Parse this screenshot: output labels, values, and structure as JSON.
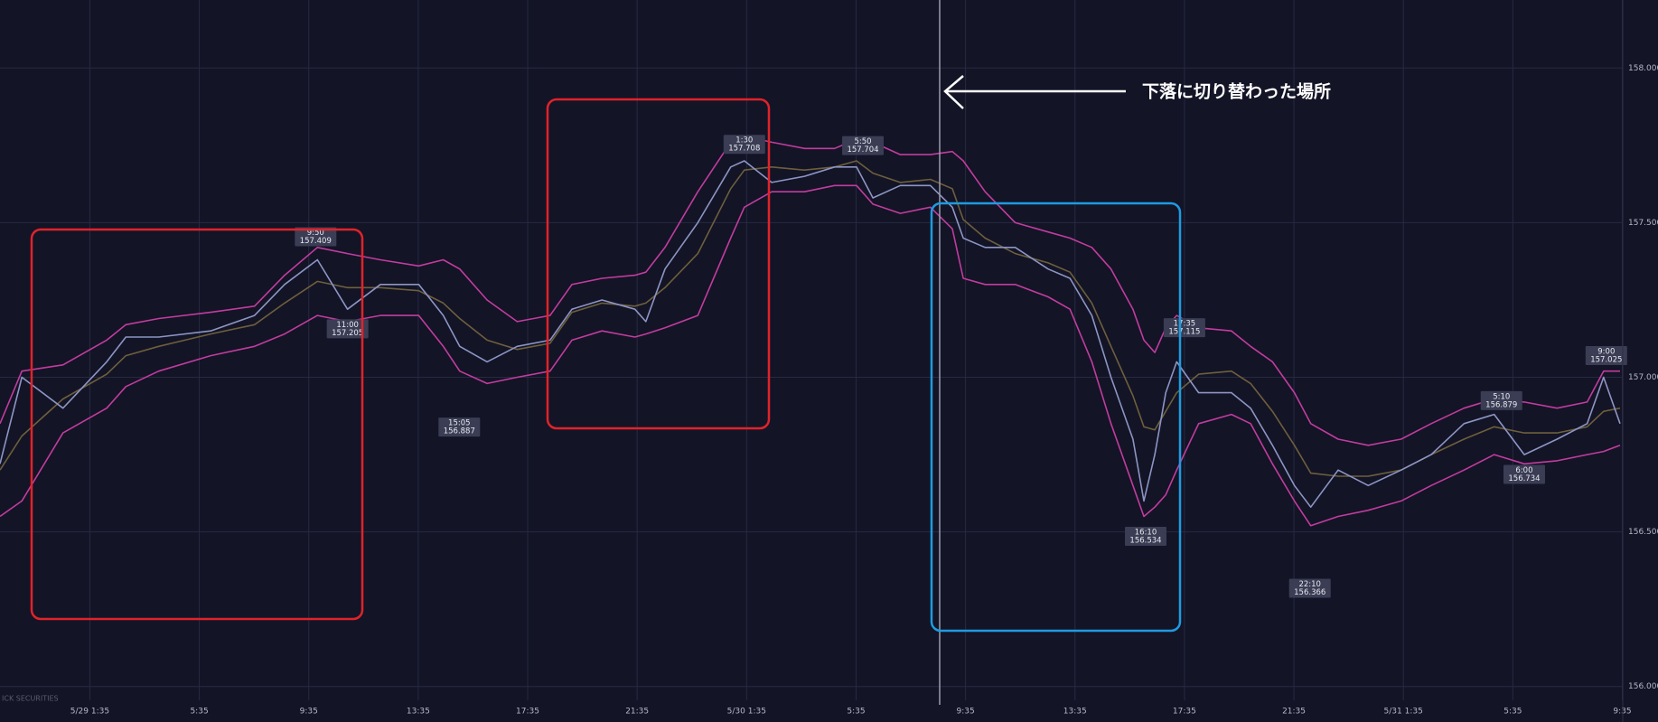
{
  "chart_data": {
    "type": "line",
    "x": [
      -1.7,
      -0.9,
      0.6,
      2.2,
      2.9,
      4.1,
      6.0,
      7.6,
      8.7,
      9.9,
      11.0,
      12.2,
      13.6,
      14.5,
      15.1,
      16.1,
      17.2,
      18.4,
      19.2,
      20.3,
      21.5,
      21.9,
      22.6,
      23.8,
      25.0,
      25.5,
      26.5,
      27.7,
      28.8,
      29.6,
      30.2,
      31.2,
      32.3,
      33.1,
      33.5,
      34.3,
      35.4,
      36.6,
      37.4,
      38.2,
      38.9,
      39.7,
      40.1,
      40.5,
      40.9,
      41.3,
      42.1,
      43.3,
      44.0,
      44.8,
      45.6,
      46.2,
      47.2,
      48.3,
      49.5,
      50.6,
      51.8,
      52.9,
      54.0,
      55.2,
      56.3,
      56.9,
      57.5
    ],
    "series": [
      {
        "color": "#c23c9e",
        "values": [
          156.85,
          157.02,
          157.04,
          157.12,
          157.17,
          157.19,
          157.21,
          157.23,
          157.33,
          157.42,
          157.4,
          157.38,
          157.36,
          157.38,
          157.35,
          157.25,
          157.18,
          157.2,
          157.3,
          157.32,
          157.33,
          157.34,
          157.42,
          157.6,
          157.76,
          157.78,
          157.76,
          157.74,
          157.74,
          157.77,
          157.76,
          157.72,
          157.72,
          157.73,
          157.7,
          157.6,
          157.5,
          157.47,
          157.45,
          157.42,
          157.35,
          157.22,
          157.12,
          157.08,
          157.16,
          157.2,
          157.16,
          157.15,
          157.1,
          157.05,
          156.95,
          156.85,
          156.8,
          156.78,
          156.8,
          156.85,
          156.9,
          156.93,
          156.92,
          156.9,
          156.92,
          157.02,
          157.02
        ]
      },
      {
        "color": "#c23c9e",
        "values": [
          156.55,
          156.6,
          156.82,
          156.9,
          156.97,
          157.02,
          157.07,
          157.1,
          157.14,
          157.2,
          157.18,
          157.2,
          157.2,
          157.1,
          157.02,
          156.98,
          157.0,
          157.02,
          157.12,
          157.15,
          157.13,
          157.14,
          157.16,
          157.2,
          157.45,
          157.55,
          157.6,
          157.6,
          157.62,
          157.62,
          157.56,
          157.53,
          157.55,
          157.48,
          157.32,
          157.3,
          157.3,
          157.26,
          157.22,
          157.05,
          156.85,
          156.65,
          156.55,
          156.58,
          156.62,
          156.7,
          156.85,
          156.88,
          156.85,
          156.72,
          156.6,
          156.52,
          156.55,
          156.57,
          156.6,
          156.65,
          156.7,
          156.75,
          156.72,
          156.73,
          156.75,
          156.76,
          156.78
        ]
      },
      {
        "color": "#6e5f3c",
        "values": [
          156.7,
          156.81,
          156.93,
          157.01,
          157.07,
          157.1,
          157.14,
          157.17,
          157.24,
          157.31,
          157.29,
          157.29,
          157.28,
          157.24,
          157.19,
          157.12,
          157.09,
          157.11,
          157.21,
          157.24,
          157.23,
          157.24,
          157.29,
          157.4,
          157.61,
          157.67,
          157.68,
          157.67,
          157.68,
          157.7,
          157.66,
          157.63,
          157.64,
          157.61,
          157.51,
          157.45,
          157.4,
          157.37,
          157.34,
          157.24,
          157.1,
          156.94,
          156.84,
          156.83,
          156.89,
          156.95,
          157.01,
          157.02,
          156.98,
          156.89,
          156.78,
          156.69,
          156.68,
          156.68,
          156.7,
          156.75,
          156.8,
          156.84,
          156.82,
          156.82,
          156.84,
          156.89,
          156.9
        ]
      },
      {
        "color": "#8d95c4",
        "values": [
          156.72,
          157.0,
          156.9,
          157.05,
          157.13,
          157.13,
          157.15,
          157.2,
          157.3,
          157.38,
          157.22,
          157.3,
          157.3,
          157.2,
          157.1,
          157.05,
          157.1,
          157.12,
          157.22,
          157.25,
          157.22,
          157.18,
          157.35,
          157.5,
          157.68,
          157.7,
          157.63,
          157.65,
          157.68,
          157.68,
          157.58,
          157.62,
          157.62,
          157.55,
          157.45,
          157.42,
          157.42,
          157.35,
          157.32,
          157.2,
          157.0,
          156.8,
          156.6,
          156.75,
          156.95,
          157.05,
          156.95,
          156.95,
          156.9,
          156.78,
          156.65,
          156.58,
          156.7,
          156.65,
          156.7,
          156.75,
          156.85,
          156.88,
          156.75,
          156.8,
          156.85,
          157.0,
          156.85
        ]
      }
    ],
    "annotations": [
      {
        "x": 9.833,
        "label": "9:50",
        "value": 157.409
      },
      {
        "x": 11.0,
        "label": "11:00",
        "value": 157.205
      },
      {
        "x": 15.083,
        "label": "15:05",
        "value": 156.887
      },
      {
        "x": 25.5,
        "label": "1:30",
        "value": 157.708
      },
      {
        "x": 29.833,
        "label": "5:50",
        "value": 157.704
      },
      {
        "x": 40.167,
        "label": "16:10",
        "value": 156.534
      },
      {
        "x": 41.583,
        "label": "17:35",
        "value": 157.115
      },
      {
        "x": 46.167,
        "label": "22:10",
        "value": 156.366
      },
      {
        "x": 53.167,
        "label": "5:10",
        "value": 156.879
      },
      {
        "x": 54.0,
        "label": "6:00",
        "value": 156.734
      },
      {
        "x": 57.0,
        "label": "9:00",
        "value": 157.025
      }
    ],
    "callout": "下落に切り替わった場所",
    "watermark": "ICK SECURITIES",
    "xlim": [
      -1.7,
      57.6
    ],
    "xticks": [
      {
        "value": 1.583,
        "label": "5/29 1:35"
      },
      {
        "value": 5.583,
        "label": "5:35"
      },
      {
        "value": 9.583,
        "label": "9:35"
      },
      {
        "value": 13.583,
        "label": "13:35"
      },
      {
        "value": 17.583,
        "label": "17:35"
      },
      {
        "value": 21.583,
        "label": "21:35"
      },
      {
        "value": 25.583,
        "label": "5/30 1:35"
      },
      {
        "value": 29.583,
        "label": "5:35"
      },
      {
        "value": 33.583,
        "label": "9:35"
      },
      {
        "value": 37.583,
        "label": "13:35"
      },
      {
        "value": 41.583,
        "label": "17:35"
      },
      {
        "value": 45.583,
        "label": "21:35"
      },
      {
        "value": 49.583,
        "label": "5/31 1:35"
      },
      {
        "value": 53.583,
        "label": "5:35"
      },
      {
        "value": 57.583,
        "label": "9:35"
      }
    ],
    "ylim": [
      155.97,
      158.22
    ],
    "yticks": [
      {
        "value": 156,
        "label": "156.000"
      },
      {
        "value": 156.5,
        "label": "156.500"
      },
      {
        "value": 157,
        "label": "157.000"
      },
      {
        "value": 157.5,
        "label": "157.500"
      },
      {
        "value": 158,
        "label": "158.000"
      }
    ],
    "grid": true
  }
}
